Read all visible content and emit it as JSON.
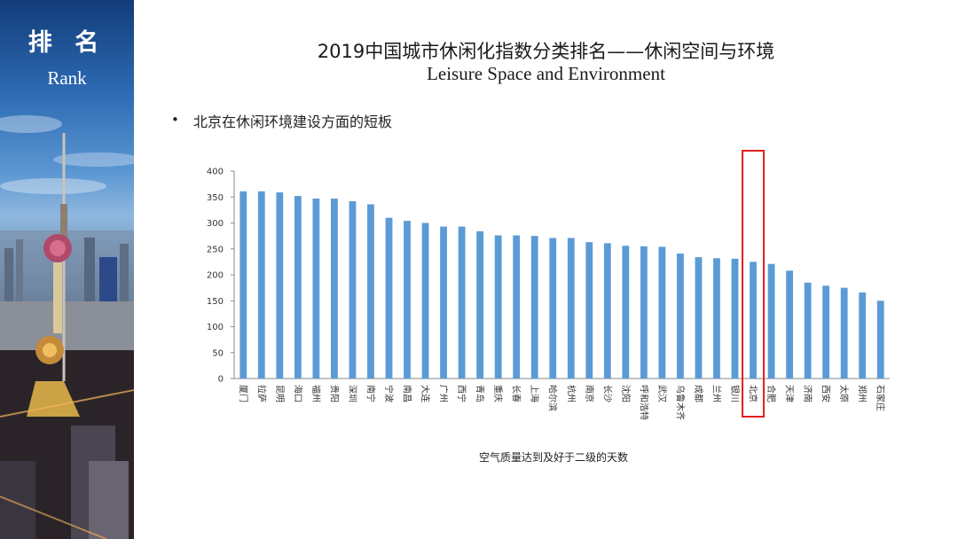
{
  "sidebar": {
    "title_cn": "排 名",
    "title_en": "Rank"
  },
  "header": {
    "title_cn": "2019中国城市休闲化指数分类排名——休闲空间与环境",
    "title_en": "Leisure Space and Environment"
  },
  "bullet": {
    "marker": "•",
    "text": "北京在休闲环境建设方面的短板"
  },
  "colors": {
    "bar": "#5b9bd5",
    "highlight_box": "#e02020"
  },
  "chart_data": {
    "type": "bar",
    "categories": [
      "厦门",
      "拉萨",
      "昆明",
      "海口",
      "福州",
      "贵阳",
      "深圳",
      "南宁",
      "宁波",
      "南昌",
      "大连",
      "广州",
      "西宁",
      "青岛",
      "重庆",
      "长春",
      "上海",
      "哈尔滨",
      "杭州",
      "南京",
      "长沙",
      "沈阳",
      "呼和浩特",
      "武汉",
      "乌鲁木齐",
      "成都",
      "兰州",
      "银川",
      "北京",
      "合肥",
      "天津",
      "济南",
      "西安",
      "太原",
      "郑州",
      "石家庄"
    ],
    "values": [
      361,
      361,
      359,
      352,
      347,
      347,
      342,
      336,
      310,
      304,
      300,
      293,
      293,
      284,
      276,
      276,
      275,
      271,
      271,
      263,
      261,
      256,
      255,
      254,
      241,
      234,
      232,
      231,
      225,
      221,
      208,
      185,
      179,
      175,
      166,
      150
    ],
    "ylim": [
      0,
      400
    ],
    "yticks": [
      0,
      50,
      100,
      150,
      200,
      250,
      300,
      350,
      400
    ],
    "xlabel": "空气质量达到及好于二级的天数",
    "highlight": "北京",
    "grid": false
  }
}
